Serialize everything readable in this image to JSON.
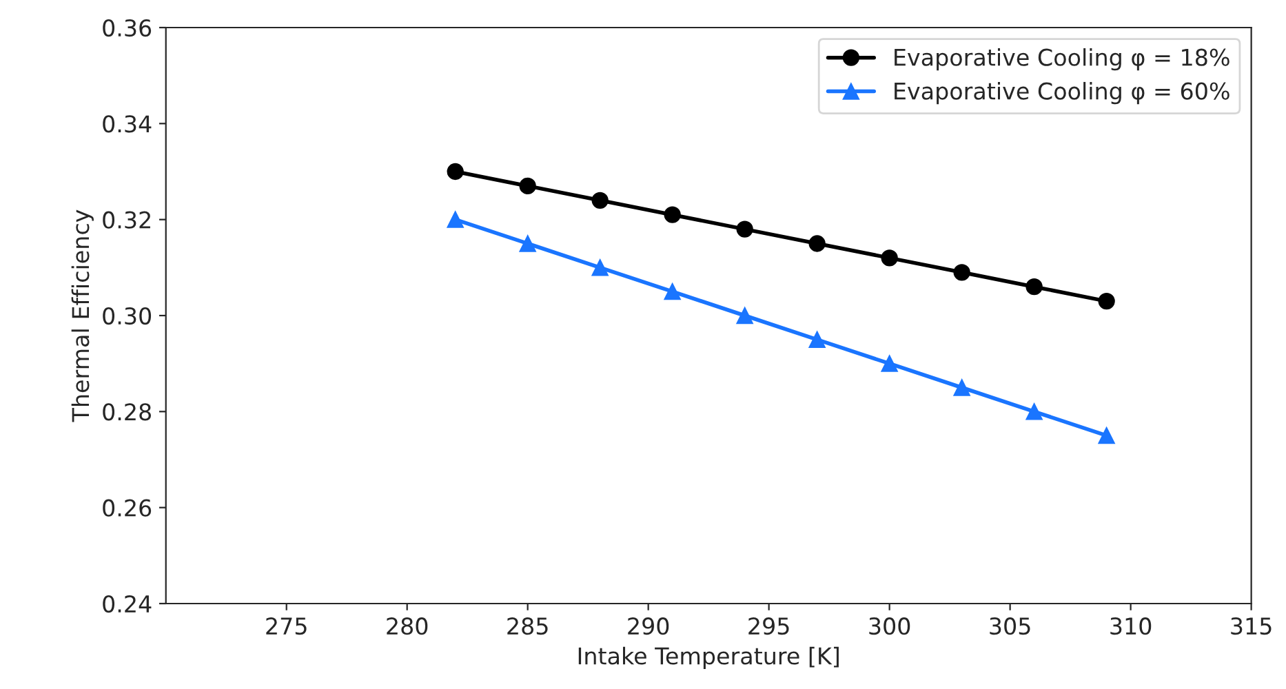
{
  "chart_data": {
    "type": "line",
    "xlabel": "Intake Temperature [K]",
    "ylabel": "Thermal Efficiency",
    "x": [
      282,
      285,
      288,
      291,
      294,
      297,
      300,
      303,
      306,
      309
    ],
    "series": [
      {
        "name": "Evaporative Cooling φ = 18%",
        "color": "#000000",
        "marker": "circle",
        "values": [
          0.33,
          0.327,
          0.324,
          0.321,
          0.318,
          0.315,
          0.312,
          0.309,
          0.306,
          0.303
        ]
      },
      {
        "name": "Evaporative Cooling φ = 60%",
        "color": "#1a75ff",
        "marker": "triangle",
        "values": [
          0.32,
          0.315,
          0.31,
          0.305,
          0.3,
          0.295,
          0.29,
          0.285,
          0.28,
          0.275
        ]
      }
    ],
    "xlim": [
      270,
      315
    ],
    "xticks": [
      275,
      280,
      285,
      290,
      295,
      300,
      305,
      310,
      315
    ],
    "ylim": [
      0.24,
      0.36
    ],
    "yticks": [
      {
        "value": 0.24,
        "label": "0.24"
      },
      {
        "value": 0.26,
        "label": "0.26"
      },
      {
        "value": 0.28,
        "label": "0.28"
      },
      {
        "value": 0.3,
        "label": "0.30"
      },
      {
        "value": 0.32,
        "label": "0.32"
      },
      {
        "value": 0.34,
        "label": "0.34"
      },
      {
        "value": 0.36,
        "label": "0.36"
      }
    ],
    "grid": false,
    "legend": "top right"
  }
}
